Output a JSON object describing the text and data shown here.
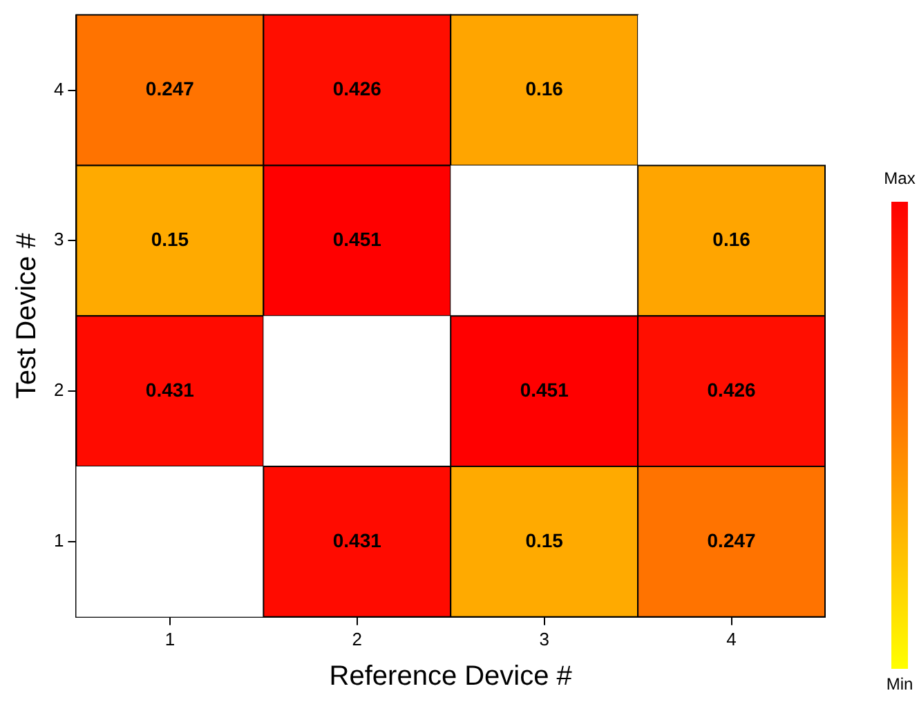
{
  "chart_data": {
    "type": "heatmap",
    "xlabel": "Reference Device #",
    "ylabel": "Test Device #",
    "categories": [
      "1",
      "2",
      "3",
      "4"
    ],
    "y_categories": [
      "4",
      "3",
      "2",
      "1"
    ],
    "cells": [
      [
        0.247,
        0.426,
        0.16,
        null
      ],
      [
        0.15,
        0.451,
        null,
        0.16
      ],
      [
        0.431,
        null,
        0.451,
        0.426
      ],
      [
        null,
        0.431,
        0.15,
        0.247
      ]
    ],
    "data_labels": true,
    "annotations": [
      "Max",
      "Min"
    ]
  }
}
